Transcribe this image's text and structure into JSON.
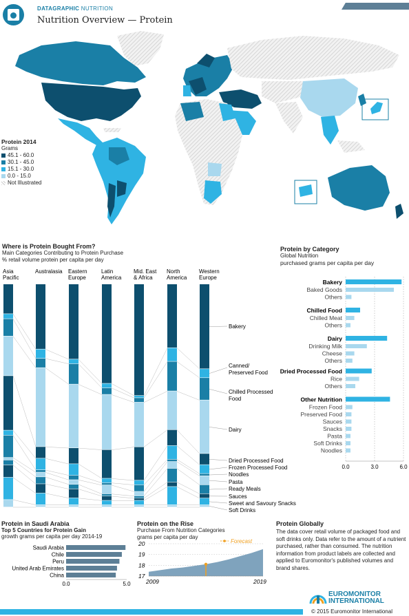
{
  "header": {
    "brand_strong": "DATAGRAPHIC",
    "brand_rest": "NUTRITION",
    "title": "Nutrition Overview — Protein"
  },
  "map_legend": {
    "title": "Protein 2014",
    "unit": "Grams",
    "items": [
      {
        "label": "45.1 - 60.0",
        "color": "#0d4f6e"
      },
      {
        "label": "30.1 - 45.0",
        "color": "#1a7fa6"
      },
      {
        "label": "15.1 - 30.0",
        "color": "#2fb3e3"
      },
      {
        "label": "0.0 - 15.0",
        "color": "#a9d8ee"
      },
      {
        "label": "Not Illustrated",
        "color": "#dddddd"
      }
    ]
  },
  "colors": {
    "dark": "#0d4f6e",
    "mid": "#1a7fa6",
    "bright": "#2fb3e3",
    "light": "#a9d8ee",
    "hatch": "#d6d6d6",
    "area": "#7fa3bd",
    "forecast": "#f0a020"
  },
  "where_bought": {
    "title": "Where is Protein Bought From?",
    "subtitle": "Main Categories Contributing to Protein Purchase",
    "unit": "% retail volume protein per capita per day",
    "regions": [
      {
        "name": [
          "Asia",
          "Pacific"
        ]
      },
      {
        "name": [
          "Australasia"
        ]
      },
      {
        "name": [
          "Eastern",
          "Europe"
        ]
      },
      {
        "name": [
          "Latin",
          "America"
        ]
      },
      {
        "name": [
          "Mid. East",
          "& Africa"
        ]
      },
      {
        "name": [
          "North",
          "America"
        ]
      },
      {
        "name": [
          "Western",
          "Europe"
        ]
      }
    ],
    "categories": [
      {
        "name": "Bakery",
        "lines": [
          "Bakery"
        ]
      },
      {
        "name": "Canned/Preserved Food",
        "lines": [
          "Canned/",
          "Preserved Food"
        ]
      },
      {
        "name": "Chilled Processed Food",
        "lines": [
          "Chilled Processed",
          "Food"
        ]
      },
      {
        "name": "Dairy",
        "lines": [
          "Dairy"
        ]
      },
      {
        "name": "Dried Processed Food",
        "lines": [
          "Dried Processed Food"
        ]
      },
      {
        "name": "Frozen Processed Food",
        "lines": [
          "Frozen Processed Food"
        ]
      },
      {
        "name": "Noodles",
        "lines": [
          "Noodles"
        ]
      },
      {
        "name": "Pasta",
        "lines": [
          "Pasta"
        ]
      },
      {
        "name": "Ready Meals",
        "lines": [
          "Ready Meals"
        ]
      },
      {
        "name": "Sauces",
        "lines": [
          "Sauces"
        ]
      },
      {
        "name": "Sweet and Savoury Snacks",
        "lines": [
          "Sweet and Savoury Snacks"
        ]
      },
      {
        "name": "Soft Drinks",
        "lines": [
          "Soft Drinks"
        ]
      }
    ]
  },
  "by_category": {
    "title": "Protein by Category",
    "subtitle": "Global Nutrition",
    "unit": "purchased grams per capita per day",
    "axis_ticks": [
      "0.0",
      "3.0",
      "6.0"
    ]
  },
  "saudi": {
    "title": "Protein in Saudi Arabia",
    "subtitle": "Top 5 Countries for Protein Gain",
    "unit": "growth grams per capita per day 2014-19",
    "axis_ticks": [
      "0.0",
      "5.0"
    ]
  },
  "on_rise": {
    "title": "Protein on the Rise",
    "subtitle": "Purchase From Nutrition Categories",
    "unit": "grams per capita per day",
    "forecast_label": "Forecast",
    "y_ticks": [
      "20",
      "19",
      "18",
      "17"
    ],
    "x_ticks": [
      "2009",
      "2019"
    ]
  },
  "globally": {
    "title": "Protein Globally",
    "body": "The data cover retail volume of packaged food and soft drinks only. Data refer to the amount of a nutrient purchased, rather than consumed. The nutrition information from product labels are collected and applied to Euromonitor's published volumes and brand shares."
  },
  "footer": {
    "logo_line1": "EUROMONITOR",
    "logo_line2": "INTERNATIONAL",
    "copyright": "© 2015 Euromonitor International"
  },
  "chart_data": [
    {
      "type": "bar",
      "stacked": true,
      "title": "Where is Protein Bought From?",
      "ylabel": "% retail volume protein per capita per day",
      "categories": [
        "Asia Pacific",
        "Australasia",
        "Eastern Europe",
        "Latin America",
        "Mid. East & Africa",
        "North America",
        "Western Europe"
      ],
      "series": [
        {
          "name": "Bakery",
          "values": [
            12,
            28,
            33,
            45,
            50,
            28,
            38
          ]
        },
        {
          "name": "Canned/Preserved Food",
          "values": [
            2,
            4,
            2,
            2,
            1,
            6,
            4
          ]
        },
        {
          "name": "Chilled Processed Food",
          "values": [
            7,
            4,
            9,
            3,
            2,
            13,
            10
          ]
        },
        {
          "name": "Dairy",
          "values": [
            16,
            34,
            28,
            25,
            20,
            17,
            24
          ]
        },
        {
          "name": "Dried Processed Food",
          "values": [
            22,
            5,
            7,
            13,
            15,
            7,
            5
          ]
        },
        {
          "name": "Frozen Processed Food",
          "values": [
            2,
            5,
            5,
            2,
            2,
            6,
            4
          ]
        },
        {
          "name": "Noodles",
          "values": [
            9,
            1,
            2,
            1,
            3,
            1,
            1
          ]
        },
        {
          "name": "Pasta",
          "values": [
            1,
            2,
            2,
            4,
            2,
            3,
            4
          ]
        },
        {
          "name": "Ready Meals",
          "values": [
            2,
            3,
            2,
            1,
            1,
            6,
            4
          ]
        },
        {
          "name": "Sauces",
          "values": [
            5,
            4,
            4,
            2,
            1,
            2,
            2
          ]
        },
        {
          "name": "Sweet and Savoury Snacks",
          "values": [
            9,
            5,
            3,
            2,
            2,
            8,
            3
          ]
        },
        {
          "name": "Soft Drinks",
          "values": [
            3,
            1,
            1,
            1,
            1,
            1,
            1
          ]
        }
      ]
    },
    {
      "type": "bar",
      "orientation": "horizontal",
      "title": "Protein by Category",
      "xlabel": "purchased grams per capita per day",
      "xlim": [
        0,
        6
      ],
      "groups": [
        {
          "name": "Bakery",
          "total": 5.8,
          "items": [
            {
              "name": "Baked Goods",
              "value": 5.0
            },
            {
              "name": "Others",
              "value": 0.6
            }
          ]
        },
        {
          "name": "Chilled Food",
          "total": 1.5,
          "items": [
            {
              "name": "Chilled Meat",
              "value": 0.9
            },
            {
              "name": "Others",
              "value": 0.5
            }
          ]
        },
        {
          "name": "Dairy",
          "total": 4.3,
          "items": [
            {
              "name": "Drinking Milk",
              "value": 2.2
            },
            {
              "name": "Cheese",
              "value": 0.9
            },
            {
              "name": "Others",
              "value": 0.7
            }
          ]
        },
        {
          "name": "Dried Processed Food",
          "total": 2.7,
          "items": [
            {
              "name": "Rice",
              "value": 1.4
            },
            {
              "name": "Others",
              "value": 1.0
            }
          ]
        },
        {
          "name": "Other Nutrition",
          "total": 4.6,
          "items": [
            {
              "name": "Frozen Food",
              "value": 0.7
            },
            {
              "name": "Preserved Food",
              "value": 0.6
            },
            {
              "name": "Sauces",
              "value": 0.6
            },
            {
              "name": "Snacks",
              "value": 0.6
            },
            {
              "name": "Pasta",
              "value": 0.5
            },
            {
              "name": "Soft Drinks",
              "value": 0.5
            },
            {
              "name": "Noodles",
              "value": 0.5
            }
          ]
        }
      ]
    },
    {
      "type": "bar",
      "orientation": "horizontal",
      "title": "Top 5 Countries for Protein Gain",
      "xlabel": "growth grams per capita per day 2014-19",
      "xlim": [
        0,
        5
      ],
      "categories": [
        "Saudi Arabia",
        "Chile",
        "Peru",
        "United Arab Emirates",
        "China"
      ],
      "values": [
        4.9,
        4.6,
        4.4,
        4.2,
        4.1
      ]
    },
    {
      "type": "area",
      "title": "Protein on the Rise",
      "ylabel": "grams per capita per day",
      "ylim": [
        17,
        20
      ],
      "x": [
        2009,
        2010,
        2011,
        2012,
        2013,
        2014,
        2015,
        2016,
        2017,
        2018,
        2019
      ],
      "values": [
        17.4,
        17.55,
        17.7,
        17.8,
        17.95,
        18.1,
        18.3,
        18.55,
        18.85,
        19.15,
        19.5
      ],
      "forecast_from": 2014
    }
  ]
}
